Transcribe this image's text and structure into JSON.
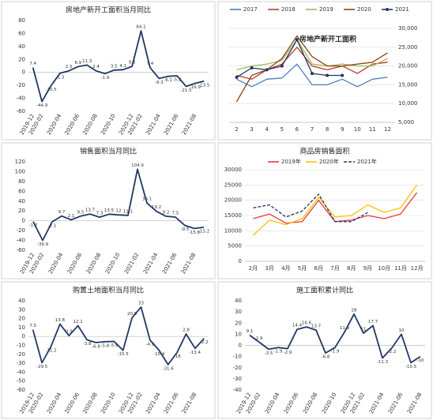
{
  "chart_data": [
    {
      "type": "line",
      "title": "房地产新开工面积当月同比",
      "categories": [
        "2019-12",
        "2020-02",
        null,
        "2020-04",
        null,
        "2020-06",
        null,
        "2020-08",
        null,
        "2020-10",
        null,
        "2020-12",
        "2021-02",
        null,
        "2021-04",
        null,
        "2021-06",
        null,
        "2021-08",
        null
      ],
      "values": [
        7.4,
        -44.9,
        -20.5,
        -1.3,
        2.5,
        8.9,
        11.3,
        2.4,
        -1.9,
        3.5,
        4.1,
        9.3,
        64.1,
        7.4,
        -9.3,
        -6.1,
        -5.2,
        -21.5,
        -16.9,
        -13.5
      ],
      "color": "#1f3864",
      "value_label_color": "#e00000",
      "ylim": [
        -60,
        80
      ],
      "yticks": [
        80,
        60,
        40,
        20,
        0,
        -20,
        -40,
        -60
      ],
      "grid": false
    },
    {
      "type": "line",
      "title": "房地产新开工面积",
      "categories": [
        "2",
        "3",
        "4",
        "5",
        "6",
        "7",
        "8",
        "9",
        "10",
        "11",
        "12"
      ],
      "series": [
        {
          "name": "2017",
          "color": "#4a7ebb",
          "values": [
            16500,
            14500,
            16500,
            16800,
            20500,
            15000,
            15000,
            16500,
            14500,
            16500,
            17000
          ]
        },
        {
          "name": "2018",
          "color": "#c0392b",
          "values": [
            17500,
            16500,
            19000,
            20500,
            25000,
            20000,
            19000,
            20000,
            18000,
            20500,
            21000
          ]
        },
        {
          "name": "2019",
          "color": "#9bbb59",
          "values": [
            19000,
            20000,
            20500,
            21500,
            27000,
            20500,
            20000,
            20500,
            20000,
            20000,
            22000
          ]
        },
        {
          "name": "2020",
          "color": "#8b4513",
          "values": [
            10500,
            17500,
            19000,
            22000,
            28000,
            22500,
            20000,
            20000,
            20500,
            21000,
            23500
          ]
        },
        {
          "name": "2021",
          "color": "#1f3864",
          "markers": true,
          "values": [
            17000,
            19500,
            19000,
            20000,
            27000,
            18000,
            17500,
            17500,
            null,
            null,
            null
          ]
        }
      ],
      "y2lim": [
        5000,
        30000
      ],
      "y2ticks": [
        {
          "value": 5000,
          "label": "5,000"
        },
        {
          "value": 10000,
          "label": "10,000"
        },
        {
          "value": 15000,
          "label": "15,000"
        },
        {
          "value": 20000,
          "label": "20,000"
        },
        {
          "value": 25000,
          "label": "25,000"
        },
        {
          "value": 30000,
          "label": "30,000"
        }
      ],
      "grid": true
    },
    {
      "type": "line",
      "title": "销售面积当月同比",
      "categories": [
        "2019-12",
        "2020-02",
        null,
        "2020-04",
        null,
        "2020-06",
        null,
        "2020-08",
        null,
        "2020-10",
        null,
        "2021-02",
        null,
        "2021-04",
        null,
        "2021-06",
        null,
        "2021-08",
        null
      ],
      "values": [
        -1.7,
        -39.9,
        -2.1,
        9.7,
        2.1,
        9.5,
        13.7,
        7.3,
        13.5,
        12.0,
        11.1,
        104.9,
        36.1,
        19.2,
        9.2,
        7.5,
        -9.5,
        -15.6,
        -13.2
      ],
      "color": "#1f3864",
      "value_label_color": "#e00000",
      "ylim": [
        -60,
        120
      ],
      "yticks": [
        120,
        100,
        80,
        60,
        40,
        20,
        0,
        -20,
        -40,
        -60
      ],
      "grid": false
    },
    {
      "type": "line",
      "title": "商品房销售面积",
      "categories": [
        "2月",
        "3月",
        "4月",
        "5月",
        "6月",
        "7月",
        "8月",
        "9月",
        "10月",
        "11月",
        "12月"
      ],
      "series": [
        {
          "name": "2019年",
          "color": "#e8383d",
          "values": [
            14000,
            15500,
            12500,
            13000,
            20000,
            13000,
            13500,
            15000,
            14000,
            15500,
            22500
          ]
        },
        {
          "name": "2020年",
          "color": "#ffc000",
          "values": [
            8500,
            13500,
            12000,
            14000,
            21000,
            14500,
            15000,
            18500,
            16000,
            17500,
            25000
          ]
        },
        {
          "name": "2021年",
          "color": "#1f3864",
          "dashed": true,
          "values": [
            17500,
            18500,
            14500,
            16500,
            22000,
            13000,
            13000,
            16000,
            null,
            null,
            null
          ]
        }
      ],
      "ylim": [
        0,
        30000
      ],
      "yticks": [
        0,
        5000,
        10000,
        15000,
        20000,
        25000,
        30000
      ],
      "grid": true
    },
    {
      "type": "line",
      "title": "购置土地面积当月同比",
      "categories": [
        "2019-12",
        "2020-02",
        null,
        "2020-04",
        null,
        "2020-06",
        null,
        "2020-08",
        null,
        "2020-10",
        null,
        "2020-12",
        "2021-02",
        null,
        "2021-04",
        null,
        "2021-06",
        null,
        "2021-08",
        null
      ],
      "values": [
        7.5,
        -29.5,
        -11.2,
        13.8,
        0.9,
        12.1,
        -3.8,
        -6.8,
        -5.8,
        -5.6,
        -15.5,
        20.9,
        33.0,
        -4.2,
        -15.4,
        -31.6,
        -18.0,
        2.8,
        -13.4,
        -2.2
      ],
      "color": "#1f3864",
      "value_label_color": "#e00000",
      "ylim": [
        -60,
        40
      ],
      "yticks": [
        40,
        30,
        20,
        10,
        0,
        -10,
        -20,
        -30,
        -40,
        -50,
        -60
      ],
      "grid": false
    },
    {
      "type": "line",
      "title": "施工面积累计同比",
      "categories": [
        "2019-12",
        "2020-02",
        null,
        "2020-04",
        null,
        "2020-06",
        null,
        "2020-08",
        null,
        "2020-10",
        null,
        "2020-12",
        "2021-02",
        null,
        "2021-04",
        null,
        "2021-06",
        null,
        "2021-08"
      ],
      "values": [
        9.1,
        2.9,
        -3.5,
        -1.9,
        -2.9,
        14.4,
        16.6,
        13.7,
        -6.8,
        -1.9,
        11.9,
        28.0,
        11.0,
        17.7,
        -11.3,
        -2.2,
        10.0,
        -15.5,
        -10.0
      ],
      "color": "#1f3864",
      "value_label_color": "#e00000",
      "ylim": [
        -40,
        40
      ],
      "yticks": [
        40,
        30,
        20,
        10,
        0,
        -10,
        -20,
        -30,
        -40
      ],
      "grid": false
    }
  ]
}
